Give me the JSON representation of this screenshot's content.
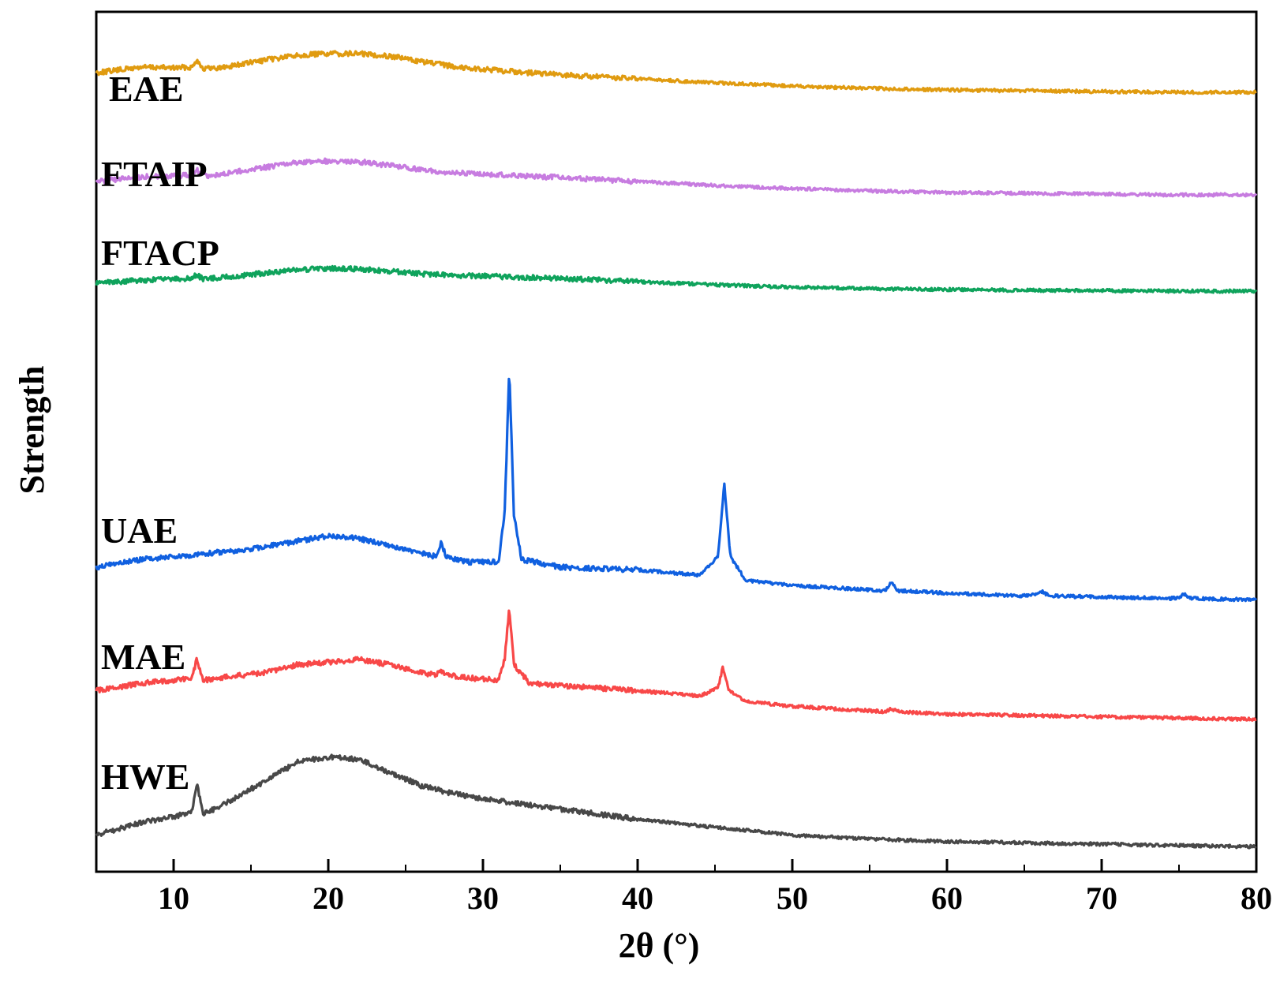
{
  "chart_data": {
    "type": "line",
    "title": "",
    "xlabel": "2θ (°)",
    "ylabel": "Strength",
    "xlim": [
      5,
      80
    ],
    "xticks": [
      10,
      20,
      30,
      40,
      50,
      60,
      70,
      80
    ],
    "yticks": [],
    "grid": false,
    "legend": "inline labels at left of each trace",
    "y_units": "arbitrary (vertically offset traces)",
    "series": [
      {
        "name": "EAE",
        "color": "#E09B10",
        "points": [
          [
            5,
            86
          ],
          [
            8,
            93
          ],
          [
            10,
            92
          ],
          [
            11.2,
            93
          ],
          [
            11.5,
            103
          ],
          [
            11.9,
            91
          ],
          [
            13,
            92
          ],
          [
            16,
            102
          ],
          [
            18,
            108
          ],
          [
            20,
            110
          ],
          [
            22,
            110
          ],
          [
            24,
            107
          ],
          [
            26,
            100
          ],
          [
            28,
            94
          ],
          [
            30,
            90
          ],
          [
            35,
            83
          ],
          [
            40,
            78
          ],
          [
            45,
            73
          ],
          [
            50,
            69
          ],
          [
            55,
            66
          ],
          [
            60,
            64
          ],
          [
            65,
            63
          ],
          [
            70,
            62
          ],
          [
            75,
            61
          ],
          [
            80,
            61
          ]
        ]
      },
      {
        "name": "FTAIP",
        "color": "#C77CE0",
        "points": [
          [
            5,
            60
          ],
          [
            8,
            66
          ],
          [
            10,
            67
          ],
          [
            11.2,
            68
          ],
          [
            11.5,
            75
          ],
          [
            11.9,
            67
          ],
          [
            13,
            69
          ],
          [
            16,
            78
          ],
          [
            18,
            84
          ],
          [
            20,
            86
          ],
          [
            22,
            85
          ],
          [
            24,
            80
          ],
          [
            26,
            75
          ],
          [
            28,
            71
          ],
          [
            30,
            69
          ],
          [
            35,
            65
          ],
          [
            40,
            60
          ],
          [
            45,
            55
          ],
          [
            50,
            51
          ],
          [
            55,
            48
          ],
          [
            60,
            46
          ],
          [
            65,
            45
          ],
          [
            70,
            44
          ],
          [
            75,
            43
          ],
          [
            80,
            43
          ]
        ]
      },
      {
        "name": "FTACP",
        "color": "#0FA35C",
        "points": [
          [
            5,
            35
          ],
          [
            8,
            39
          ],
          [
            10,
            40
          ],
          [
            11.2,
            41
          ],
          [
            11.5,
            46
          ],
          [
            11.9,
            40
          ],
          [
            13,
            42
          ],
          [
            16,
            48
          ],
          [
            18,
            52
          ],
          [
            20,
            54
          ],
          [
            22,
            53
          ],
          [
            24,
            50
          ],
          [
            26,
            47
          ],
          [
            28,
            45
          ],
          [
            30,
            44
          ],
          [
            35,
            41
          ],
          [
            40,
            37
          ],
          [
            45,
            33
          ],
          [
            50,
            30
          ],
          [
            55,
            28
          ],
          [
            60,
            27
          ],
          [
            65,
            26
          ],
          [
            70,
            25.5
          ],
          [
            75,
            25
          ],
          [
            80,
            25
          ]
        ]
      },
      {
        "name": "UAE",
        "color": "#1060E0",
        "points": [
          [
            5,
            20
          ],
          [
            8,
            23
          ],
          [
            10,
            24
          ],
          [
            15,
            27
          ],
          [
            18,
            30
          ],
          [
            20,
            32
          ],
          [
            22,
            31
          ],
          [
            25,
            27
          ],
          [
            27,
            24
          ],
          [
            27.3,
            30
          ],
          [
            27.6,
            24
          ],
          [
            29,
            22
          ],
          [
            31,
            22
          ],
          [
            31.4,
            40
          ],
          [
            31.7,
            96
          ],
          [
            32.0,
            40
          ],
          [
            32.5,
            23
          ],
          [
            35,
            20
          ],
          [
            40,
            19
          ],
          [
            44,
            17
          ],
          [
            45.2,
            24
          ],
          [
            45.6,
            52
          ],
          [
            46.0,
            24
          ],
          [
            47,
            15
          ],
          [
            50,
            13
          ],
          [
            53,
            12
          ],
          [
            56,
            11
          ],
          [
            56.4,
            14
          ],
          [
            56.8,
            11
          ],
          [
            60,
            10
          ],
          [
            65,
            9
          ],
          [
            66.2,
            10.5
          ],
          [
            66.6,
            9
          ],
          [
            70,
            8.5
          ],
          [
            75,
            8
          ],
          [
            75.3,
            10
          ],
          [
            75.7,
            8
          ],
          [
            80,
            7.5
          ]
        ]
      },
      {
        "name": "MAE",
        "color": "#F84848",
        "points": [
          [
            5,
            18
          ],
          [
            8,
            21
          ],
          [
            10,
            22
          ],
          [
            11.2,
            23
          ],
          [
            11.5,
            30
          ],
          [
            11.9,
            22
          ],
          [
            13,
            23
          ],
          [
            16,
            25
          ],
          [
            18,
            28
          ],
          [
            20,
            29
          ],
          [
            22,
            30
          ],
          [
            24,
            28
          ],
          [
            26,
            25
          ],
          [
            27,
            24
          ],
          [
            27.3,
            26
          ],
          [
            27.6,
            24
          ],
          [
            29,
            23
          ],
          [
            31,
            22
          ],
          [
            31.4,
            30
          ],
          [
            31.7,
            50
          ],
          [
            32.0,
            28
          ],
          [
            33,
            21
          ],
          [
            35,
            20
          ],
          [
            40,
            18
          ],
          [
            44,
            16
          ],
          [
            45.2,
            19
          ],
          [
            45.5,
            27
          ],
          [
            45.9,
            18
          ],
          [
            47,
            14
          ],
          [
            50,
            12
          ],
          [
            56,
            10
          ],
          [
            56.4,
            11
          ],
          [
            56.8,
            10
          ],
          [
            60,
            9
          ],
          [
            65,
            8.5
          ],
          [
            70,
            8
          ],
          [
            75,
            7.5
          ],
          [
            80,
            7
          ]
        ]
      },
      {
        "name": "HWE",
        "color": "#484848",
        "points": [
          [
            5,
            5
          ],
          [
            8,
            10
          ],
          [
            10,
            12
          ],
          [
            11.2,
            14
          ],
          [
            11.5,
            25
          ],
          [
            11.9,
            13
          ],
          [
            13,
            16
          ],
          [
            16,
            26
          ],
          [
            18,
            33
          ],
          [
            20,
            35
          ],
          [
            22,
            34
          ],
          [
            24,
            29
          ],
          [
            26,
            24
          ],
          [
            28,
            21
          ],
          [
            30,
            19
          ],
          [
            35,
            15
          ],
          [
            40,
            11
          ],
          [
            45,
            8
          ],
          [
            50,
            5
          ],
          [
            55,
            3.5
          ],
          [
            60,
            2.5
          ],
          [
            65,
            2
          ],
          [
            70,
            1.5
          ],
          [
            75,
            1
          ],
          [
            80,
            0.5
          ]
        ]
      }
    ],
    "layout": {
      "EAE": {
        "base": 178,
        "scale": 1.0
      },
      "FTAIP": {
        "base": 290,
        "scale": 1.0
      },
      "FTACP": {
        "base": 394,
        "scale": 1.0
      },
      "UAE": {
        "base": 785,
        "scale": 3.3
      },
      "MAE": {
        "base": 935,
        "scale": 3.3
      },
      "HWE": {
        "base": 1075,
        "scale": 3.3
      }
    }
  }
}
